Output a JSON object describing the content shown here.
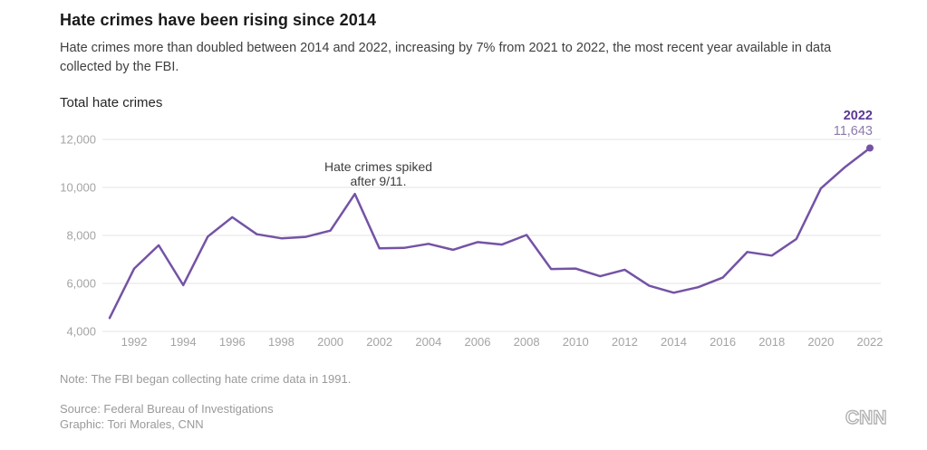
{
  "header": {
    "title": "Hate crimes have been rising since 2014",
    "subtitle": "Hate crimes more than doubled between 2014 and 2022, increasing by 7% from 2021 to 2022, the most recent year available in data collected by the FBI."
  },
  "chart_data": {
    "type": "line",
    "title": "Total hate crimes",
    "xlabel": "",
    "ylabel": "",
    "x": [
      1991,
      1992,
      1993,
      1994,
      1995,
      1996,
      1997,
      1998,
      1999,
      2000,
      2001,
      2002,
      2003,
      2004,
      2005,
      2006,
      2007,
      2008,
      2009,
      2010,
      2011,
      2012,
      2013,
      2014,
      2015,
      2016,
      2017,
      2018,
      2019,
      2020,
      2021,
      2022
    ],
    "values": [
      4560,
      6620,
      7590,
      5930,
      7950,
      8760,
      8050,
      7880,
      7940,
      8200,
      9730,
      7460,
      7480,
      7650,
      7400,
      7720,
      7620,
      8020,
      6600,
      6620,
      6300,
      6570,
      5900,
      5610,
      5840,
      6240,
      7310,
      7160,
      7850,
      9960,
      10860,
      11643
    ],
    "xlim": [
      1991,
      2022
    ],
    "ylim": [
      4000,
      12000
    ],
    "y_ticks": [
      4000,
      6000,
      8000,
      10000,
      12000
    ],
    "y_tick_labels": [
      "4,000",
      "6,000",
      "8,000",
      "10,000",
      "12,000"
    ],
    "x_ticks": [
      1992,
      1994,
      1996,
      1998,
      2000,
      2002,
      2004,
      2006,
      2008,
      2010,
      2012,
      2014,
      2016,
      2018,
      2020,
      2022
    ],
    "grid": "horizontal",
    "legend": "none",
    "line_color": "#7453a5",
    "gridline_color": "#e3e3e3",
    "axis_label_color": "#a4a4a4",
    "annotation": {
      "line1": "Hate crimes spiked",
      "line2": "after 9/11.",
      "near_x": 2001
    },
    "end_label": {
      "year": "2022",
      "value": "11,643"
    }
  },
  "footer": {
    "note": "Note: The FBI began collecting hate crime data in 1991.",
    "source": "Source: Federal Bureau of Investigations",
    "credit": "Graphic: Tori Morales, CNN",
    "logo": "CNN"
  }
}
